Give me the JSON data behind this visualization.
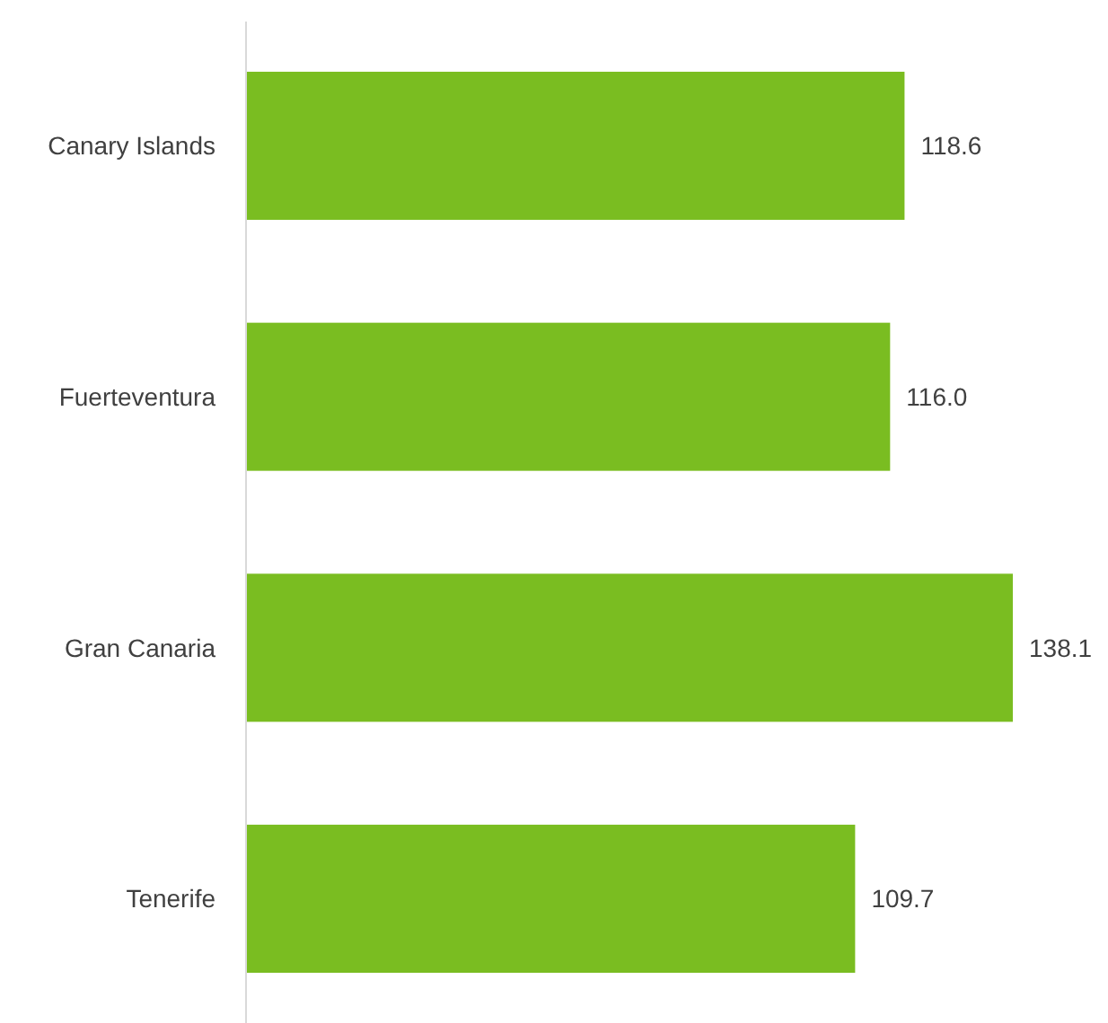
{
  "chart_data": {
    "type": "bar",
    "orientation": "horizontal",
    "categories": [
      "Canary Islands",
      "Fuerteventura",
      "Gran Canaria",
      "Tenerife"
    ],
    "values": [
      118.6,
      116.0,
      138.1,
      109.7
    ],
    "value_labels": [
      "118.6",
      "116.0",
      "138.1",
      "109.7"
    ],
    "color": "#7abd21"
  }
}
